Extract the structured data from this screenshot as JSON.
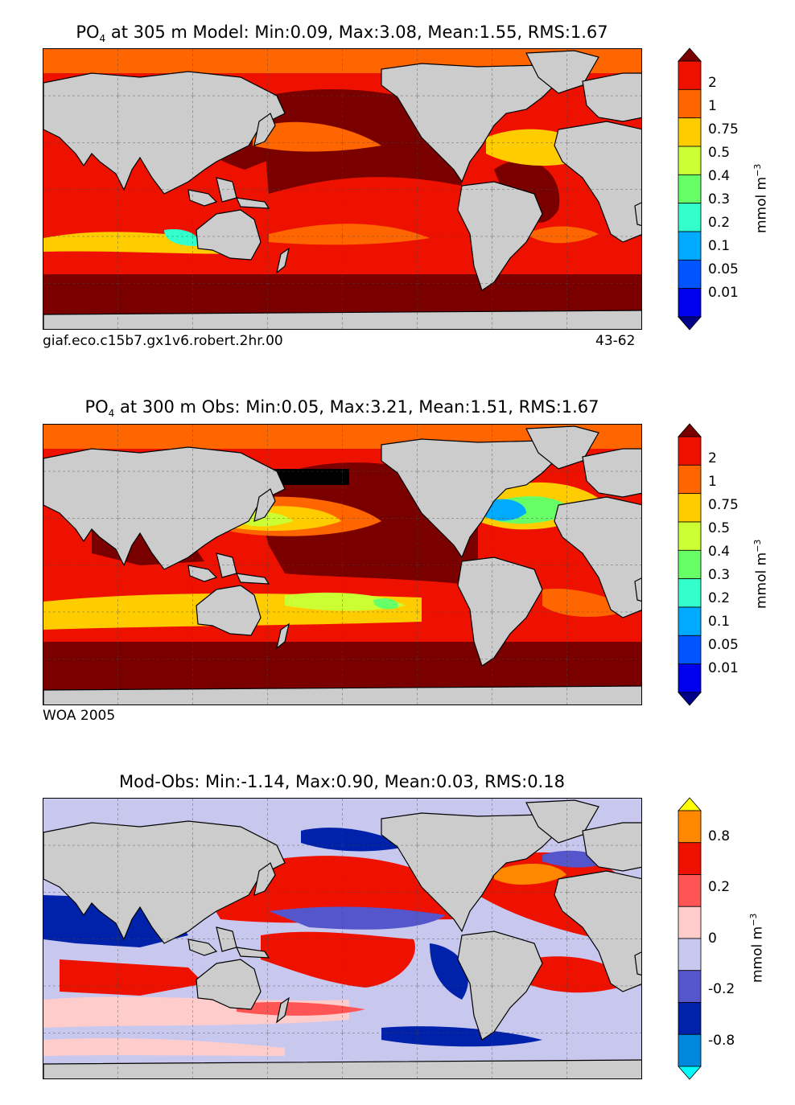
{
  "panels": [
    {
      "title_prefix": "PO",
      "title_sub": "4",
      "title_rest": " at 305 m Model: Min:0.09, Max:3.08, Mean:1.55, RMS:1.67",
      "footer_left": "giaf.eco.c15b7.gx1v6.robert.2hr.00",
      "footer_right": "43-62",
      "colorbar": {
        "labels": [
          "2",
          "1",
          "0.75",
          "0.5",
          "0.4",
          "0.3",
          "0.2",
          "0.1",
          "0.05",
          "0.01"
        ],
        "colors": [
          "#7a0000",
          "#ee1100",
          "#ff6600",
          "#ffcc00",
          "#ccff33",
          "#66ff66",
          "#33ffcc",
          "#00aaff",
          "#0055ff",
          "#0000ee",
          "#000088"
        ],
        "units_main": "mmol m",
        "units_sup": "−3"
      }
    },
    {
      "title_prefix": "PO",
      "title_sub": "4",
      "title_rest": " at 300 m Obs: Min:0.05, Max:3.21, Mean:1.51, RMS:1.67",
      "footer_left": "WOA 2005",
      "footer_right": "",
      "colorbar": {
        "labels": [
          "2",
          "1",
          "0.75",
          "0.5",
          "0.4",
          "0.3",
          "0.2",
          "0.1",
          "0.05",
          "0.01"
        ],
        "colors": [
          "#7a0000",
          "#ee1100",
          "#ff6600",
          "#ffcc00",
          "#ccff33",
          "#66ff66",
          "#33ffcc",
          "#00aaff",
          "#0055ff",
          "#0000ee",
          "#000088"
        ],
        "units_main": "mmol m",
        "units_sup": "−3"
      }
    },
    {
      "title_full": "Mod-Obs: Min:-1.14, Max:0.90, Mean:0.03, RMS:0.18",
      "colorbar": {
        "labels": [
          "0.8",
          "0.2",
          "0",
          "-0.2",
          "-0.8"
        ],
        "colors": [
          "#ffff00",
          "#ff8800",
          "#ee1100",
          "#ff5555",
          "#ffcccc",
          "#c8c8ee",
          "#5555cc",
          "#0022aa",
          "#0088dd",
          "#00ffff"
        ],
        "units_main": "mmol m",
        "units_sup": "−3"
      }
    }
  ]
}
